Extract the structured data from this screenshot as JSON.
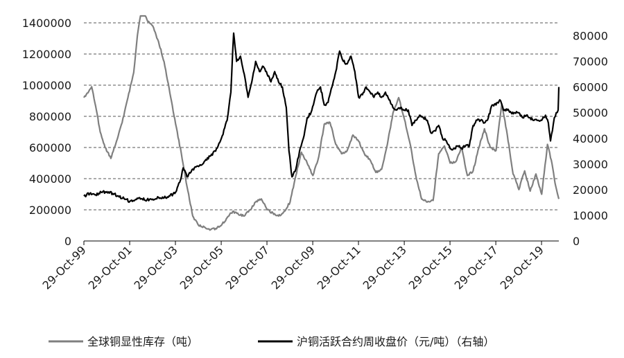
{
  "chart_data": {
    "type": "line",
    "title": "",
    "x_ticks": [
      "29-Oct-99",
      "29-Oct-01",
      "29-Oct-03",
      "29-Oct-05",
      "29-Oct-07",
      "29-Oct-09",
      "29-Oct-11",
      "29-Oct-13",
      "29-Oct-15",
      "29-Oct-17",
      "29-Oct-19"
    ],
    "x_range": [
      "1999-10-29",
      "2020-07-31"
    ],
    "y_left": {
      "ylim": [
        0,
        1400000
      ],
      "ticks": [
        "0",
        "200000",
        "400000",
        "600000",
        "800000",
        "1000000",
        "1200000",
        "1400000"
      ]
    },
    "y_right": {
      "ylim": [
        0,
        85000
      ],
      "ticks": [
        "0",
        "10000",
        "20000",
        "30000",
        "40000",
        "50000",
        "60000",
        "70000",
        "80000"
      ]
    },
    "grid": "horizontal dashed",
    "legend_position": "bottom",
    "series": [
      {
        "name": "全球铜显性库存（吨）",
        "axis": "left",
        "color": "#7f7f7f",
        "points": [
          [
            "1999-10-29",
            920000
          ],
          [
            "2000-01-15",
            960000
          ],
          [
            "2000-03-01",
            990000
          ],
          [
            "2000-05-15",
            840000
          ],
          [
            "2000-07-15",
            700000
          ],
          [
            "2000-10-01",
            600000
          ],
          [
            "2001-01-01",
            530000
          ],
          [
            "2001-04-01",
            640000
          ],
          [
            "2001-07-01",
            760000
          ],
          [
            "2001-10-01",
            920000
          ],
          [
            "2002-01-01",
            1080000
          ],
          [
            "2002-03-01",
            1320000
          ],
          [
            "2002-05-01",
            1490000
          ],
          [
            "2002-08-01",
            1420000
          ],
          [
            "2002-11-01",
            1380000
          ],
          [
            "2003-02-01",
            1280000
          ],
          [
            "2003-05-01",
            1150000
          ],
          [
            "2003-08-01",
            950000
          ],
          [
            "2003-11-01",
            750000
          ],
          [
            "2004-02-01",
            560000
          ],
          [
            "2004-05-01",
            350000
          ],
          [
            "2004-08-01",
            160000
          ],
          [
            "2004-11-01",
            100000
          ],
          [
            "2005-02-01",
            90000
          ],
          [
            "2005-05-01",
            70000
          ],
          [
            "2005-08-01",
            80000
          ],
          [
            "2005-11-01",
            100000
          ],
          [
            "2006-02-01",
            150000
          ],
          [
            "2006-05-01",
            190000
          ],
          [
            "2006-08-01",
            170000
          ],
          [
            "2006-11-01",
            160000
          ],
          [
            "2007-02-01",
            200000
          ],
          [
            "2007-05-01",
            250000
          ],
          [
            "2007-08-01",
            270000
          ],
          [
            "2007-11-01",
            200000
          ],
          [
            "2008-02-01",
            180000
          ],
          [
            "2008-05-01",
            160000
          ],
          [
            "2008-08-01",
            190000
          ],
          [
            "2008-11-01",
            250000
          ],
          [
            "2009-02-01",
            420000
          ],
          [
            "2009-05-01",
            570000
          ],
          [
            "2009-08-01",
            500000
          ],
          [
            "2009-11-01",
            420000
          ],
          [
            "2010-02-01",
            540000
          ],
          [
            "2010-05-01",
            750000
          ],
          [
            "2010-08-01",
            760000
          ],
          [
            "2010-11-01",
            620000
          ],
          [
            "2011-02-01",
            560000
          ],
          [
            "2011-05-01",
            580000
          ],
          [
            "2011-08-01",
            680000
          ],
          [
            "2011-11-01",
            640000
          ],
          [
            "2012-02-01",
            560000
          ],
          [
            "2012-05-01",
            520000
          ],
          [
            "2012-08-01",
            440000
          ],
          [
            "2012-11-01",
            460000
          ],
          [
            "2013-02-01",
            620000
          ],
          [
            "2013-05-01",
            820000
          ],
          [
            "2013-08-01",
            920000
          ],
          [
            "2013-11-01",
            780000
          ],
          [
            "2014-02-01",
            620000
          ],
          [
            "2014-05-01",
            420000
          ],
          [
            "2014-08-01",
            270000
          ],
          [
            "2014-11-01",
            250000
          ],
          [
            "2015-02-01",
            260000
          ],
          [
            "2015-05-01",
            560000
          ],
          [
            "2015-08-01",
            610000
          ],
          [
            "2015-11-01",
            500000
          ],
          [
            "2016-02-01",
            510000
          ],
          [
            "2016-05-01",
            600000
          ],
          [
            "2016-08-01",
            420000
          ],
          [
            "2016-11-01",
            450000
          ],
          [
            "2017-02-01",
            600000
          ],
          [
            "2017-05-01",
            720000
          ],
          [
            "2017-08-01",
            600000
          ],
          [
            "2017-11-01",
            580000
          ],
          [
            "2018-02-01",
            880000
          ],
          [
            "2018-05-01",
            680000
          ],
          [
            "2018-08-01",
            430000
          ],
          [
            "2018-11-01",
            330000
          ],
          [
            "2019-02-01",
            450000
          ],
          [
            "2019-05-01",
            320000
          ],
          [
            "2019-08-01",
            430000
          ],
          [
            "2019-11-01",
            300000
          ],
          [
            "2020-02-01",
            620000
          ],
          [
            "2020-04-01",
            520000
          ],
          [
            "2020-06-01",
            370000
          ],
          [
            "2020-07-31",
            270000
          ]
        ]
      },
      {
        "name": "沪铜活跃合约周收盘价（元/吨）（右轴）",
        "axis": "right",
        "color": "#000000",
        "points": [
          [
            "1999-10-29",
            17500
          ],
          [
            "2000-02-01",
            18500
          ],
          [
            "2000-05-01",
            18000
          ],
          [
            "2000-08-01",
            19000
          ],
          [
            "2000-11-01",
            19200
          ],
          [
            "2001-02-01",
            18500
          ],
          [
            "2001-05-01",
            17500
          ],
          [
            "2001-08-01",
            16500
          ],
          [
            "2001-11-01",
            15500
          ],
          [
            "2002-02-01",
            16200
          ],
          [
            "2002-05-01",
            16500
          ],
          [
            "2002-08-01",
            16000
          ],
          [
            "2002-11-01",
            16300
          ],
          [
            "2003-02-01",
            17000
          ],
          [
            "2003-05-01",
            16800
          ],
          [
            "2003-08-01",
            17500
          ],
          [
            "2003-11-01",
            19000
          ],
          [
            "2004-02-01",
            25000
          ],
          [
            "2004-03-01",
            28500
          ],
          [
            "2004-05-01",
            25000
          ],
          [
            "2004-08-01",
            28000
          ],
          [
            "2004-11-01",
            29000
          ],
          [
            "2005-02-01",
            31000
          ],
          [
            "2005-05-01",
            33000
          ],
          [
            "2005-08-01",
            35000
          ],
          [
            "2005-11-01",
            40000
          ],
          [
            "2006-02-01",
            47000
          ],
          [
            "2006-04-01",
            58000
          ],
          [
            "2006-05-15",
            81000
          ],
          [
            "2006-07-01",
            70000
          ],
          [
            "2006-09-01",
            72000
          ],
          [
            "2006-11-01",
            65000
          ],
          [
            "2007-01-01",
            56000
          ],
          [
            "2007-03-01",
            62000
          ],
          [
            "2007-05-01",
            70000
          ],
          [
            "2007-07-01",
            66000
          ],
          [
            "2007-09-01",
            68000
          ],
          [
            "2007-11-01",
            65000
          ],
          [
            "2008-01-01",
            62000
          ],
          [
            "2008-03-01",
            66000
          ],
          [
            "2008-05-01",
            62000
          ],
          [
            "2008-07-01",
            60000
          ],
          [
            "2008-09-01",
            52000
          ],
          [
            "2008-10-15",
            35000
          ],
          [
            "2008-12-01",
            25000
          ],
          [
            "2009-02-01",
            28000
          ],
          [
            "2009-04-01",
            35000
          ],
          [
            "2009-06-01",
            40000
          ],
          [
            "2009-08-01",
            48000
          ],
          [
            "2009-10-01",
            50000
          ],
          [
            "2010-01-01",
            58000
          ],
          [
            "2010-03-01",
            60000
          ],
          [
            "2010-05-01",
            53000
          ],
          [
            "2010-07-01",
            54000
          ],
          [
            "2010-09-01",
            60000
          ],
          [
            "2010-11-01",
            66000
          ],
          [
            "2011-01-01",
            74000
          ],
          [
            "2011-03-01",
            70000
          ],
          [
            "2011-05-01",
            69000
          ],
          [
            "2011-07-01",
            72000
          ],
          [
            "2011-09-01",
            66000
          ],
          [
            "2011-11-01",
            56000
          ],
          [
            "2012-01-01",
            57000
          ],
          [
            "2012-03-01",
            60000
          ],
          [
            "2012-05-01",
            58000
          ],
          [
            "2012-07-01",
            56000
          ],
          [
            "2012-09-01",
            58000
          ],
          [
            "2012-11-01",
            56000
          ],
          [
            "2013-01-01",
            58000
          ],
          [
            "2013-03-01",
            55000
          ],
          [
            "2013-05-01",
            52000
          ],
          [
            "2013-07-01",
            51000
          ],
          [
            "2013-09-01",
            52000
          ],
          [
            "2013-11-01",
            51000
          ],
          [
            "2014-01-01",
            51000
          ],
          [
            "2014-03-01",
            45000
          ],
          [
            "2014-05-01",
            47000
          ],
          [
            "2014-07-01",
            49000
          ],
          [
            "2014-09-01",
            48000
          ],
          [
            "2014-11-01",
            47000
          ],
          [
            "2015-01-01",
            42000
          ],
          [
            "2015-03-01",
            43000
          ],
          [
            "2015-05-01",
            45000
          ],
          [
            "2015-07-01",
            40000
          ],
          [
            "2015-09-01",
            39000
          ],
          [
            "2015-11-01",
            36000
          ],
          [
            "2016-01-01",
            36000
          ],
          [
            "2016-03-01",
            37000
          ],
          [
            "2016-05-01",
            36000
          ],
          [
            "2016-07-01",
            37000
          ],
          [
            "2016-09-01",
            37000
          ],
          [
            "2016-11-01",
            45000
          ],
          [
            "2017-01-01",
            47000
          ],
          [
            "2017-03-01",
            47000
          ],
          [
            "2017-05-01",
            46000
          ],
          [
            "2017-07-01",
            48000
          ],
          [
            "2017-09-01",
            53000
          ],
          [
            "2017-11-01",
            53000
          ],
          [
            "2018-01-01",
            55000
          ],
          [
            "2018-03-01",
            51000
          ],
          [
            "2018-05-01",
            51000
          ],
          [
            "2018-07-01",
            50000
          ],
          [
            "2018-09-01",
            50000
          ],
          [
            "2018-11-01",
            50000
          ],
          [
            "2019-01-01",
            48000
          ],
          [
            "2019-03-01",
            49000
          ],
          [
            "2019-05-01",
            48000
          ],
          [
            "2019-07-01",
            47000
          ],
          [
            "2019-09-01",
            47000
          ],
          [
            "2019-11-01",
            47000
          ],
          [
            "2020-01-01",
            49000
          ],
          [
            "2020-02-15",
            46000
          ],
          [
            "2020-03-20",
            39000
          ],
          [
            "2020-04-20",
            43000
          ],
          [
            "2020-05-20",
            48000
          ],
          [
            "2020-06-20",
            50000
          ],
          [
            "2020-07-20",
            51000
          ],
          [
            "2020-07-31",
            60000
          ]
        ]
      }
    ]
  }
}
